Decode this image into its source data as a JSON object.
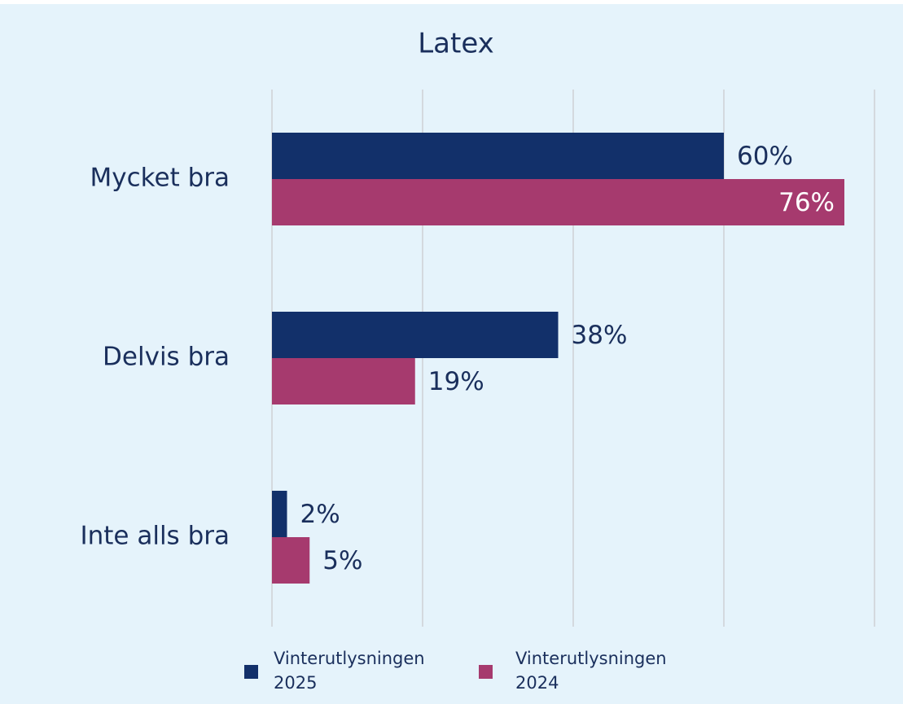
{
  "chart_data": {
    "type": "hbar",
    "title": "Latex",
    "categories": [
      "Mycket bra",
      "Delvis bra",
      "Inte alls bra"
    ],
    "series": [
      {
        "name": "Vinterutlysningen 2025",
        "color": "#12306a",
        "values": [
          60,
          38,
          2
        ],
        "value_labels": [
          "60%",
          "38%",
          "2%"
        ]
      },
      {
        "name": "Vinterutlysningen 2024",
        "color": "#a63a6e",
        "values": [
          76,
          19,
          5
        ],
        "value_labels": [
          "76%",
          "19%",
          "5%"
        ]
      }
    ],
    "xlim": [
      0,
      80
    ],
    "xticks": [
      0,
      20,
      40,
      60,
      80
    ],
    "grid": true,
    "legend": "bottom"
  }
}
